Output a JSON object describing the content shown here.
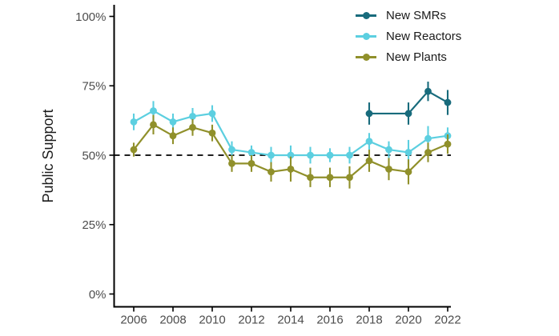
{
  "figure": {
    "ylabel": "Public Support",
    "background_color": "#ffffff",
    "axis_color": "#000000",
    "tick_label_color": "#4d4d4d",
    "text_color": "#1a1a1a"
  },
  "legend": {
    "position": "top-right",
    "items": [
      {
        "label": "New SMRs",
        "color": "#186b7c"
      },
      {
        "label": "New Reactors",
        "color": "#5ccfe0"
      },
      {
        "label": "New Plants",
        "color": "#90902b"
      }
    ]
  },
  "chart_data": {
    "type": "line",
    "title": "",
    "xlabel": "",
    "ylabel": "Public Support",
    "ylim": [
      0,
      100
    ],
    "xlim": [
      2005,
      2023
    ],
    "grid": false,
    "legend_position": "top-right",
    "y_ticks": [
      0,
      25,
      50,
      75,
      100
    ],
    "y_tick_labels": [
      "0%",
      "25%",
      "50%",
      "75%",
      "100%"
    ],
    "x_ticks": [
      2006,
      2008,
      2010,
      2012,
      2014,
      2016,
      2018,
      2020,
      2022
    ],
    "x_tick_labels": [
      "2006",
      "2008",
      "2010",
      "2012",
      "2014",
      "2016",
      "2018",
      "2020",
      "2022"
    ],
    "reference_line": {
      "y": 50,
      "style": "dashed",
      "color": "#000000"
    },
    "series": [
      {
        "name": "New SMRs",
        "color": "#186b7c",
        "x": [
          2018,
          2020,
          2021,
          2022
        ],
        "y": [
          65,
          65,
          73,
          69
        ],
        "err": [
          4,
          4,
          3.5,
          4.5
        ]
      },
      {
        "name": "New Reactors",
        "color": "#5ccfe0",
        "x": [
          2006,
          2007,
          2008,
          2009,
          2010,
          2011,
          2012,
          2013,
          2014,
          2015,
          2016,
          2017,
          2018,
          2019,
          2020,
          2021,
          2022
        ],
        "y": [
          62,
          66,
          62,
          64,
          65,
          52,
          51,
          50,
          50,
          50,
          50,
          50,
          55,
          52,
          51,
          56,
          57
        ],
        "err": [
          3,
          3.5,
          3,
          3,
          3,
          3,
          2.5,
          3,
          3.5,
          3,
          2.5,
          3,
          3,
          3,
          4.5,
          4.5,
          3
        ]
      },
      {
        "name": "New Plants",
        "color": "#90902b",
        "x": [
          2006,
          2007,
          2008,
          2009,
          2010,
          2011,
          2012,
          2013,
          2014,
          2015,
          2016,
          2017,
          2018,
          2019,
          2020,
          2021,
          2022
        ],
        "y": [
          52,
          61,
          57,
          60,
          58,
          47,
          47,
          44,
          45,
          42,
          42,
          42,
          48,
          45,
          44,
          51,
          54
        ],
        "err": [
          2.5,
          3.5,
          3,
          3,
          3,
          3,
          3,
          3.5,
          4.5,
          3.5,
          3.5,
          4,
          4,
          4,
          4.5,
          3.5,
          3.5
        ]
      }
    ]
  }
}
